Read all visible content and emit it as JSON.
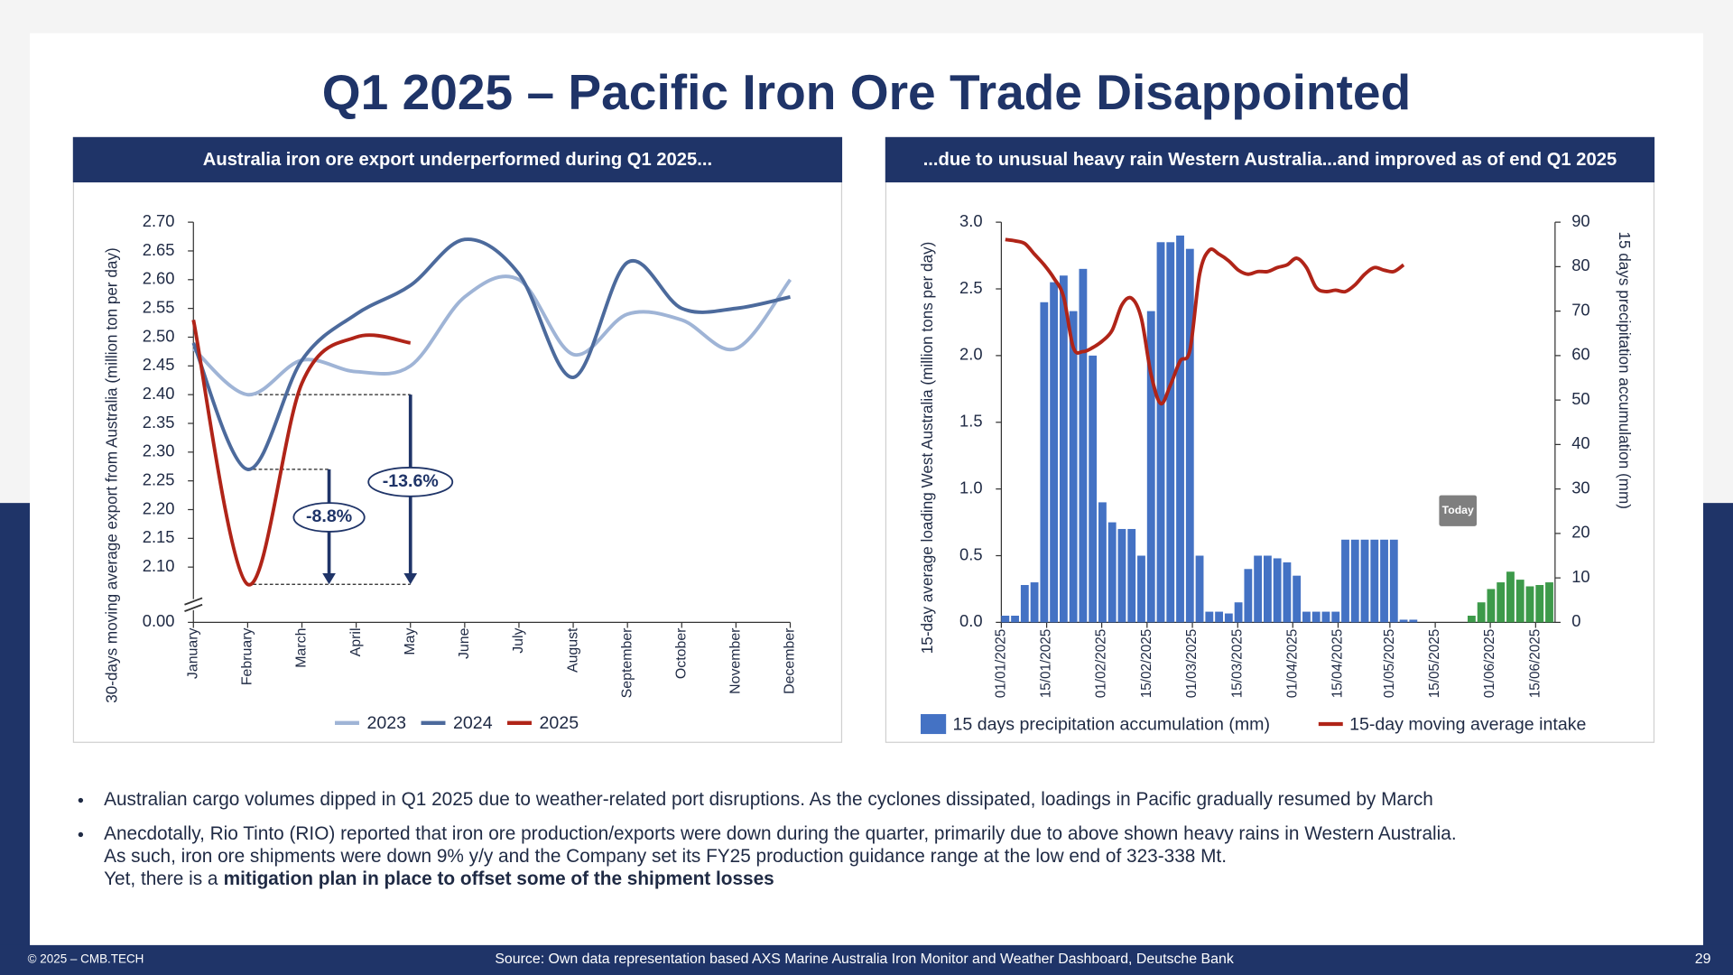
{
  "title": "Q1 2025 – Pacific Iron Ore Trade Disappointed",
  "chart_data": [
    {
      "type": "line",
      "title": "Australia iron ore export underperformed during Q1 2025...",
      "y_label": "30-days moving average export from Australia  (million ton per day)",
      "categories": [
        "January",
        "February",
        "March",
        "April",
        "May",
        "June",
        "July",
        "August",
        "September",
        "October",
        "November",
        "December"
      ],
      "series": [
        {
          "name": "2023",
          "color": "#9fb4d6",
          "values": [
            2.48,
            2.4,
            2.46,
            2.44,
            2.45,
            2.57,
            2.6,
            2.47,
            2.54,
            2.53,
            2.48,
            2.6
          ]
        },
        {
          "name": "2024",
          "color": "#4c6a9c",
          "values": [
            2.49,
            2.27,
            2.46,
            2.54,
            2.59,
            2.67,
            2.61,
            2.43,
            2.63,
            2.55,
            2.55,
            2.57
          ]
        },
        {
          "name": "2025",
          "color": "#b02418",
          "values": [
            2.53,
            2.07,
            2.42,
            2.5,
            2.49,
            null,
            null,
            null,
            null,
            null,
            null,
            null
          ]
        }
      ],
      "ylim": [
        2.05,
        2.7
      ],
      "yticks": [
        {
          "value": 2.1,
          "label": "2.10"
        },
        2.15,
        {
          "value": 2.2,
          "label": "2.20"
        },
        2.25,
        {
          "value": 2.3,
          "label": "2.30"
        },
        2.35,
        {
          "value": 2.4,
          "label": "2.40"
        },
        2.45,
        {
          "value": 2.5,
          "label": "2.50"
        },
        2.55,
        {
          "value": 2.6,
          "label": "2.60"
        },
        2.65,
        {
          "value": 2.7,
          "label": "2.70"
        }
      ],
      "axis_break": {
        "value": 0,
        "label": "0.00"
      },
      "annotations": [
        {
          "label": "-8.8%",
          "from": 2.27,
          "to": 2.07
        },
        {
          "label": "-13.6%",
          "from": 2.4,
          "to": 2.07
        }
      ],
      "legend": "bottom"
    },
    {
      "type": "bar_line",
      "title": "...due to unusual heavy rain Western Australia...and improved as of end Q1 2025",
      "y_label": "15-day average loading  West Australia (million tons per day)",
      "y2_label": "15 days precipitation accumulation (mm)",
      "x": [
        "01/01/2025",
        "04/01/2025",
        "07/01/2025",
        "10/01/2025",
        "13/01/2025",
        "16/01/2025",
        "19/01/2025",
        "22/01/2025",
        "25/01/2025",
        "28/01/2025",
        "31/01/2025",
        "03/02/2025",
        "06/02/2025",
        "09/02/2025",
        "12/02/2025",
        "15/02/2025",
        "18/02/2025",
        "21/02/2025",
        "24/02/2025",
        "27/02/2025",
        "02/03/2025",
        "05/03/2025",
        "08/03/2025",
        "11/03/2025",
        "14/03/2025",
        "17/03/2025",
        "20/03/2025",
        "23/03/2025",
        "26/03/2025",
        "29/03/2025",
        "01/04/2025",
        "04/04/2025",
        "07/04/2025",
        "10/04/2025",
        "13/04/2025",
        "16/04/2025",
        "19/04/2025",
        "22/04/2025",
        "25/04/2025",
        "28/04/2025",
        "01/05/2025",
        "04/05/2025",
        "07/05/2025",
        "10/05/2025",
        "13/05/2025",
        "16/05/2025",
        "19/05/2025",
        "22/05/2025",
        "25/05/2025",
        "28/05/2025",
        "31/05/2025",
        "03/06/2025",
        "06/06/2025",
        "09/06/2025",
        "12/06/2025",
        "15/06/2025",
        "18/06/2025"
      ],
      "series": [
        {
          "name": "15 days precipitation accumulation (mm)",
          "kind": "bar",
          "axis": "y2",
          "color": "#4472c4",
          "highlight": {
            "from": "25/05/2025",
            "color": "#3d9a4a"
          },
          "values": [
            1.5,
            1.5,
            8.4,
            9,
            72,
            76.5,
            78,
            70,
            79.5,
            60,
            27,
            22.5,
            21,
            21,
            15,
            70,
            85.5,
            85.5,
            87,
            84,
            15,
            2.4,
            2.4,
            2,
            4.5,
            12,
            15,
            15,
            14.4,
            13.5,
            10.5,
            2.4,
            2.4,
            2.4,
            2.4,
            18.6,
            18.6,
            18.6,
            18.6,
            18.6,
            18.6,
            0.6,
            0.6,
            0,
            0,
            0,
            0,
            0,
            1.5,
            4.5,
            7.5,
            9,
            11.4,
            9.6,
            8.1,
            8.4,
            9
          ]
        },
        {
          "name": "15-day moving average intake",
          "kind": "line",
          "axis": "y",
          "color": "#b02418",
          "values": [
            2.87,
            2.86,
            2.84,
            2.76,
            2.68,
            2.58,
            2.44,
            2.06,
            2.03,
            2.06,
            2.11,
            2.19,
            2.38,
            2.43,
            2.28,
            1.86,
            1.64,
            1.78,
            1.96,
            2.04,
            2.61,
            2.79,
            2.76,
            2.71,
            2.64,
            2.61,
            2.63,
            2.63,
            2.66,
            2.68,
            2.73,
            2.66,
            2.51,
            2.48,
            2.49,
            2.48,
            2.53,
            2.61,
            2.66,
            2.64,
            2.63,
            2.68,
            null,
            null,
            null,
            null,
            null,
            null,
            null,
            null,
            null,
            null,
            null,
            null,
            null,
            null,
            null
          ]
        }
      ],
      "xlim": [
        "01/01/2025",
        "21/06/2025"
      ],
      "xticks": [
        "01/01/2025",
        "15/01/2025",
        "01/02/2025",
        "15/02/2025",
        "01/03/2025",
        "15/03/2025",
        "01/04/2025",
        "15/04/2025",
        "01/05/2025",
        "15/05/2025",
        "01/06/2025",
        "15/06/2025"
      ],
      "ylim": [
        0,
        3
      ],
      "yticks": [
        {
          "value": 0,
          "label": "0.0"
        },
        0.5,
        {
          "value": 1,
          "label": "1.0"
        },
        1.5,
        {
          "value": 2,
          "label": "2.0"
        },
        2.5,
        {
          "value": 3,
          "label": "3.0"
        }
      ],
      "y2lim": [
        0,
        90
      ],
      "y2ticks": [
        0,
        10,
        20,
        30,
        40,
        50,
        60,
        70,
        80,
        90
      ],
      "annotations": [
        {
          "label": "Today",
          "x": "22/05/2025"
        }
      ],
      "legend": "bottom"
    }
  ],
  "bullets": [
    {
      "lines": [
        "Australian cargo volumes dipped in Q1 2025 due to weather-related port disruptions. As the cyclones dissipated, loadings in Pacific gradually resumed by March"
      ]
    },
    {
      "lines": [
        "Anecdotally, Rio Tinto (RIO) reported that iron ore production/exports were down during the quarter, primarily due to above shown heavy rains in Western Australia.",
        "As such, iron ore shipments were down 9% y/y and the Company set its FY25 production guidance range at the low end of 323-338 Mt.",
        "Yet, there is a"
      ],
      "emphasis": "mitigation plan in place to offset some of the shipment losses"
    }
  ],
  "footer": {
    "copyright": "© 2025 – CMB.TECH",
    "source": "Source:  Own data representation based AXS Marine Australia Iron Monitor and Weather Dashboard, Deutsche Bank",
    "page": 29
  }
}
